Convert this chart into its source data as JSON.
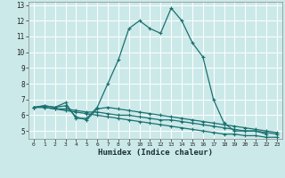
{
  "xlabel": "Humidex (Indice chaleur)",
  "background_color": "#cce9e9",
  "grid_color": "#ffffff",
  "line_color": "#1a7070",
  "x_values": [
    0,
    1,
    2,
    3,
    4,
    5,
    6,
    7,
    8,
    9,
    10,
    11,
    12,
    13,
    14,
    15,
    16,
    17,
    18,
    19,
    20,
    21,
    22,
    23
  ],
  "series": [
    [
      6.5,
      6.6,
      6.5,
      6.8,
      5.8,
      5.8,
      6.5,
      8.0,
      9.5,
      11.5,
      12.0,
      11.5,
      11.2,
      12.8,
      12.0,
      10.6,
      9.7,
      7.0,
      5.5,
      5.0,
      5.0,
      5.0,
      4.8,
      null
    ],
    [
      6.5,
      6.6,
      6.5,
      6.6,
      5.9,
      5.7,
      6.4,
      6.5,
      6.4,
      6.3,
      6.2,
      6.1,
      6.0,
      5.9,
      5.8,
      5.7,
      5.6,
      5.5,
      5.4,
      5.3,
      5.2,
      5.1,
      5.0,
      4.9
    ],
    [
      6.5,
      6.5,
      6.4,
      6.4,
      6.3,
      6.2,
      6.2,
      6.1,
      6.0,
      6.0,
      5.9,
      5.8,
      5.7,
      5.7,
      5.6,
      5.5,
      5.4,
      5.3,
      5.2,
      5.1,
      5.0,
      5.0,
      4.9,
      4.8
    ],
    [
      6.5,
      6.5,
      6.4,
      6.3,
      6.2,
      6.1,
      6.0,
      5.9,
      5.8,
      5.7,
      5.6,
      5.5,
      5.4,
      5.3,
      5.2,
      5.1,
      5.0,
      4.9,
      4.8,
      4.8,
      4.7,
      4.7,
      4.6,
      4.6
    ]
  ],
  "ylim": [
    4.5,
    13.2
  ],
  "xlim": [
    -0.5,
    23.5
  ],
  "yticks": [
    5,
    6,
    7,
    8,
    9,
    10,
    11,
    12,
    13
  ],
  "xticks": [
    0,
    1,
    2,
    3,
    4,
    5,
    6,
    7,
    8,
    9,
    10,
    11,
    12,
    13,
    14,
    15,
    16,
    17,
    18,
    19,
    20,
    21,
    22,
    23
  ],
  "marker": "+",
  "marker_size": 3,
  "line_width": 0.9
}
